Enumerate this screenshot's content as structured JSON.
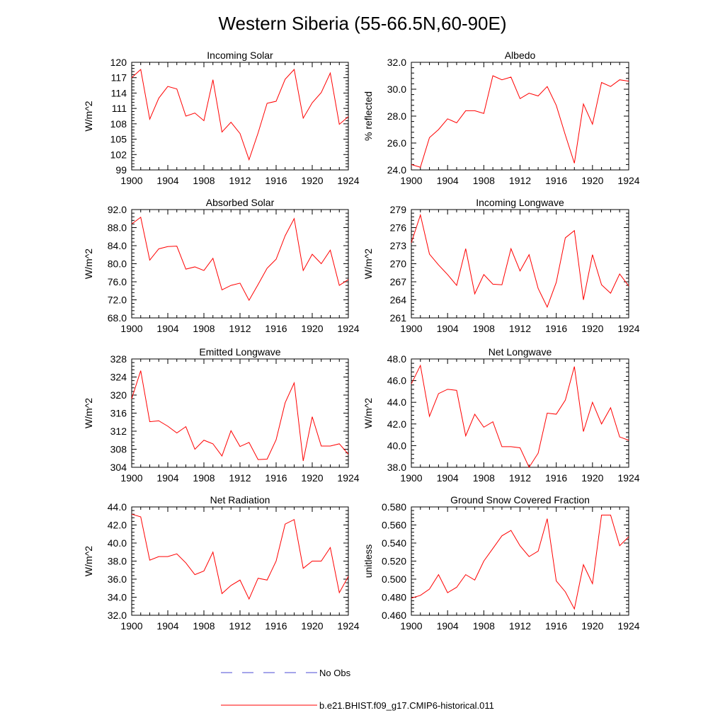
{
  "title": "Western Siberia (55-66.5N,60-90E)",
  "colors": {
    "model": "#ff0000",
    "obs": "#4b4bd6",
    "axis": "#000000"
  },
  "legend": {
    "obs_label": "No Obs",
    "model_label": "b.e21.BHIST.f09_g17.CMIP6-historical.011"
  },
  "chart_data": [
    {
      "type": "line",
      "title": "Incoming Solar",
      "ylabel": "W/m^2",
      "xlim": [
        1900,
        1924
      ],
      "ylim": [
        99,
        120
      ],
      "xticks": [
        "1900",
        "1904",
        "1908",
        "1912",
        "1916",
        "1920",
        "1924"
      ],
      "yticks": [
        "99",
        "102",
        "105",
        "108",
        "111",
        "114",
        "117",
        "120"
      ],
      "series": [
        {
          "values": [
            117.0,
            118.6,
            108.9,
            113.0,
            115.3,
            114.8,
            109.5,
            110.1,
            108.6,
            116.6,
            106.4,
            108.3,
            106.1,
            101.0,
            106.2,
            112.0,
            112.4,
            116.7,
            118.6,
            109.1,
            112.1,
            114.1,
            117.9,
            107.9,
            109.4
          ]
        }
      ]
    },
    {
      "type": "line",
      "title": "Albedo",
      "ylabel": "% reflected",
      "xlim": [
        1900,
        1924
      ],
      "ylim": [
        24,
        32
      ],
      "xticks": [
        "1900",
        "1904",
        "1908",
        "1912",
        "1916",
        "1920",
        "1924"
      ],
      "yticks": [
        "24.0",
        "26.0",
        "28.0",
        "30.0",
        "32.0"
      ],
      "series": [
        {
          "values": [
            24.4,
            24.2,
            26.4,
            27.0,
            27.8,
            27.5,
            28.4,
            28.4,
            28.2,
            31.0,
            30.7,
            30.9,
            29.3,
            29.7,
            29.5,
            30.2,
            28.8,
            26.6,
            24.5,
            28.9,
            27.4,
            30.5,
            30.2,
            30.7,
            30.6
          ]
        }
      ]
    },
    {
      "type": "line",
      "title": "Absorbed Solar",
      "ylabel": "W/m^2",
      "xlim": [
        1900,
        1924
      ],
      "ylim": [
        68,
        92
      ],
      "xticks": [
        "1900",
        "1904",
        "1908",
        "1912",
        "1916",
        "1920",
        "1924"
      ],
      "yticks": [
        "68.0",
        "72.0",
        "76.0",
        "80.0",
        "84.0",
        "88.0",
        "92.0"
      ],
      "series": [
        {
          "values": [
            88.8,
            90.3,
            80.8,
            83.3,
            83.8,
            83.9,
            78.8,
            79.3,
            78.5,
            81.2,
            74.2,
            75.2,
            75.7,
            71.9,
            75.4,
            79.0,
            81.0,
            86.2,
            90.0,
            78.5,
            82.1,
            80.0,
            83.0,
            75.2,
            76.5
          ]
        }
      ]
    },
    {
      "type": "line",
      "title": "Incoming Longwave",
      "ylabel": "W/m^2",
      "xlim": [
        1900,
        1924
      ],
      "ylim": [
        261,
        279
      ],
      "xticks": [
        "1900",
        "1904",
        "1908",
        "1912",
        "1916",
        "1920",
        "1924"
      ],
      "yticks": [
        "261",
        "264",
        "267",
        "270",
        "273",
        "276",
        "279"
      ],
      "series": [
        {
          "values": [
            273.5,
            278.1,
            271.6,
            269.8,
            268.2,
            266.4,
            272.5,
            265.0,
            268.2,
            266.6,
            266.5,
            272.5,
            268.8,
            271.5,
            265.9,
            262.8,
            266.9,
            274.3,
            275.5,
            264.0,
            271.5,
            266.5,
            265.1,
            268.3,
            266.3
          ]
        }
      ]
    },
    {
      "type": "line",
      "title": "Emitted Longwave",
      "ylabel": "W/m^2",
      "xlim": [
        1900,
        1924
      ],
      "ylim": [
        304,
        328
      ],
      "xticks": [
        "1900",
        "1904",
        "1908",
        "1912",
        "1916",
        "1920",
        "1924"
      ],
      "yticks": [
        "304",
        "308",
        "312",
        "316",
        "320",
        "324",
        "328"
      ],
      "series": [
        {
          "values": [
            319.2,
            325.4,
            314.1,
            314.3,
            313.1,
            311.6,
            313.0,
            308.0,
            310.0,
            309.2,
            306.5,
            312.1,
            308.6,
            309.5,
            305.7,
            305.8,
            310.1,
            318.3,
            322.7,
            305.4,
            315.2,
            308.7,
            308.7,
            309.2,
            306.9
          ]
        }
      ]
    },
    {
      "type": "line",
      "title": "Net Longwave",
      "ylabel": "W/m^2",
      "xlim": [
        1900,
        1924
      ],
      "ylim": [
        38,
        48
      ],
      "xticks": [
        "1900",
        "1904",
        "1908",
        "1912",
        "1916",
        "1920",
        "1924"
      ],
      "yticks": [
        "38.0",
        "40.0",
        "42.0",
        "44.0",
        "46.0",
        "48.0"
      ],
      "series": [
        {
          "values": [
            45.7,
            47.4,
            42.7,
            44.8,
            45.2,
            45.1,
            40.9,
            42.9,
            41.7,
            42.2,
            39.9,
            39.9,
            39.8,
            38.0,
            39.3,
            43.0,
            42.9,
            44.2,
            47.3,
            41.3,
            44.0,
            42.0,
            43.5,
            40.8,
            40.5
          ]
        }
      ]
    },
    {
      "type": "line",
      "title": "Net Radiation",
      "ylabel": "W/m^2",
      "xlim": [
        1900,
        1924
      ],
      "ylim": [
        32,
        44
      ],
      "xticks": [
        "1900",
        "1904",
        "1908",
        "1912",
        "1916",
        "1920",
        "1924"
      ],
      "yticks": [
        "32.0",
        "34.0",
        "36.0",
        "38.0",
        "40.0",
        "42.0",
        "44.0"
      ],
      "series": [
        {
          "values": [
            43.2,
            42.9,
            38.1,
            38.5,
            38.5,
            38.8,
            37.8,
            36.5,
            36.9,
            39.0,
            34.4,
            35.3,
            35.9,
            33.8,
            36.1,
            35.9,
            38.0,
            42.1,
            42.6,
            37.2,
            38.0,
            38.0,
            39.5,
            34.5,
            36.3
          ]
        }
      ]
    },
    {
      "type": "line",
      "title": "Ground Snow Covered Fraction",
      "ylabel": "unitless",
      "xlim": [
        1900,
        1924
      ],
      "ylim": [
        0.46,
        0.58
      ],
      "xticks": [
        "1900",
        "1904",
        "1908",
        "1912",
        "1916",
        "1920",
        "1924"
      ],
      "yticks": [
        "0.460",
        "0.480",
        "0.500",
        "0.520",
        "0.540",
        "0.560",
        "0.580"
      ],
      "series": [
        {
          "values": [
            0.479,
            0.482,
            0.489,
            0.505,
            0.485,
            0.491,
            0.505,
            0.499,
            0.52,
            0.534,
            0.548,
            0.554,
            0.537,
            0.525,
            0.531,
            0.567,
            0.498,
            0.486,
            0.467,
            0.516,
            0.495,
            0.571,
            0.571,
            0.537,
            0.547
          ]
        }
      ]
    }
  ]
}
